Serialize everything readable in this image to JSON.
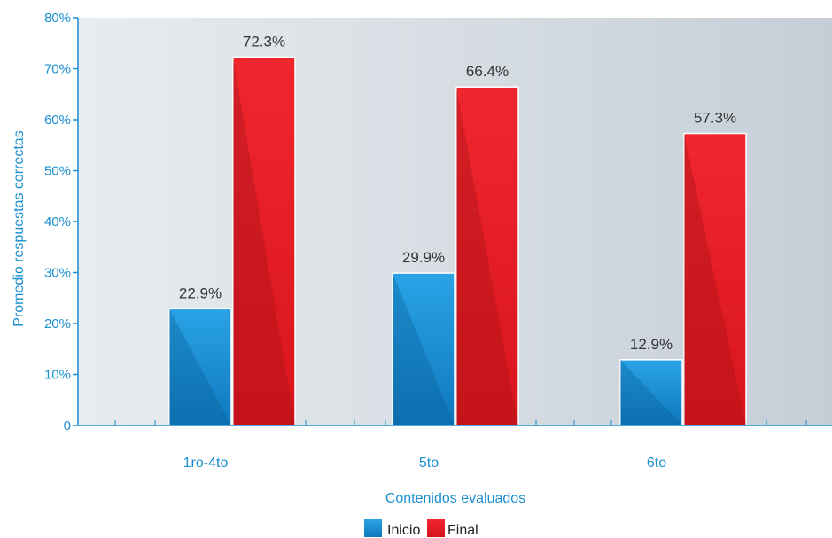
{
  "chart_data": {
    "type": "bar",
    "categories": [
      "1ro-4to",
      "5to",
      "6to"
    ],
    "series": [
      {
        "name": "Inicio",
        "values": [
          22.9,
          29.9,
          12.9
        ],
        "color": "#1a8fd0"
      },
      {
        "name": "Final",
        "values": [
          72.3,
          66.4,
          57.3
        ],
        "color": "#e31b23"
      }
    ],
    "data_labels": {
      "Inicio": [
        "22.9%",
        "29.9%",
        "12.9%"
      ],
      "Final": [
        "72.3%",
        "66.4%",
        "57.3%"
      ]
    },
    "ylim": [
      0,
      80
    ],
    "yticks": [
      0,
      10,
      20,
      30,
      40,
      50,
      60,
      70,
      80
    ],
    "ytick_labels": [
      "0",
      "10%",
      "20%",
      "30%",
      "40%",
      "50%",
      "60%",
      "70%",
      "80%"
    ],
    "xlabel": "Contenidos evaluados",
    "ylabel": "Promedio respuestas correctas",
    "grid": false,
    "legend": "bottom-center",
    "background_colors": [
      "#e9ecef",
      "#c5ced7"
    ],
    "axis_color": "#1a8fd0"
  }
}
